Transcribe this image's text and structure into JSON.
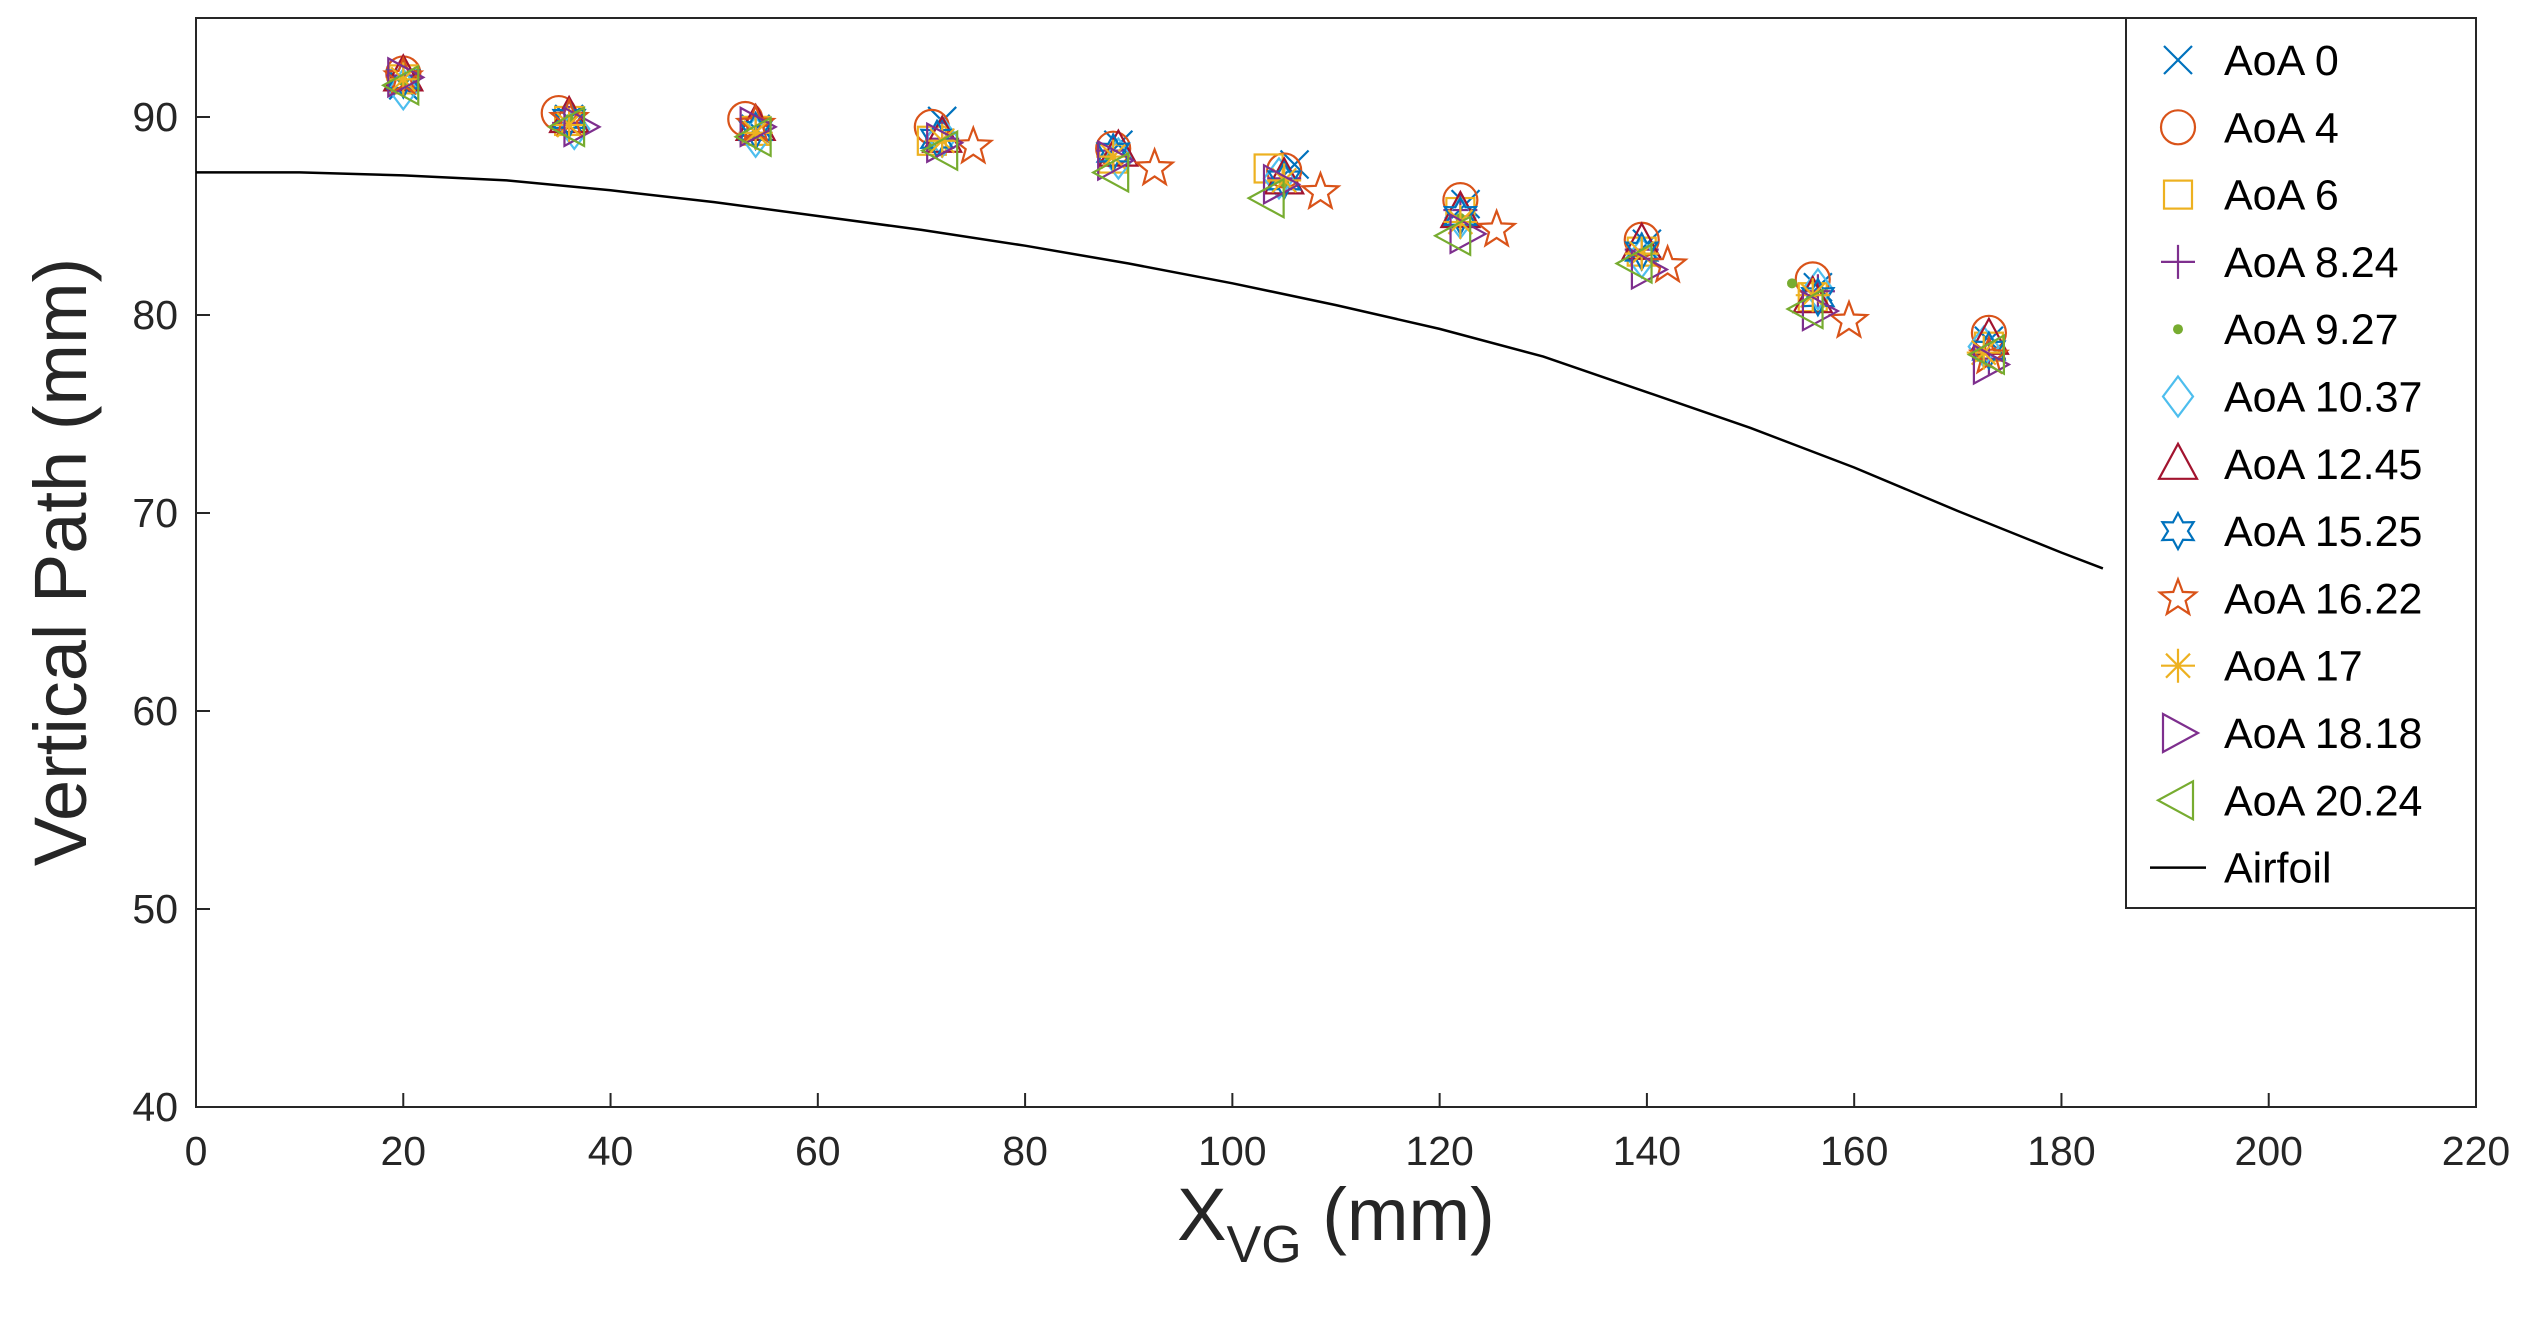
{
  "chart_data": {
    "type": "scatter",
    "title": "",
    "xlabel": "X",
    "xlabel_sub": "VG",
    "xlabel_unit": " (mm)",
    "ylabel": "Vertical Path (mm)",
    "xlim": [
      0,
      220
    ],
    "ylim": [
      40,
      95
    ],
    "xticks": [
      "0",
      "20",
      "40",
      "60",
      "80",
      "100",
      "120",
      "140",
      "160",
      "180",
      "200",
      "220"
    ],
    "yticks": [
      "40",
      "50",
      "60",
      "70",
      "80",
      "90"
    ],
    "grid": false,
    "legend_position": "top-right",
    "series": [
      {
        "name": "AoA 0",
        "marker": "x",
        "color": "#0072BD",
        "x": [
          20,
          36,
          54,
          72,
          89,
          106,
          122.5,
          140,
          156.5,
          173
        ],
        "y": [
          91.6,
          89.9,
          89.4,
          89.8,
          88.6,
          87.6,
          85.6,
          83.6,
          81.4,
          78.7
        ]
      },
      {
        "name": "AoA 4",
        "marker": "circle",
        "color": "#D95319",
        "x": [
          20,
          35,
          53,
          71,
          88.5,
          105,
          122,
          139.5,
          156,
          173
        ],
        "y": [
          92.2,
          90.2,
          89.9,
          89.5,
          88.4,
          87.3,
          85.8,
          83.8,
          81.8,
          79.1
        ]
      },
      {
        "name": "AoA 6",
        "marker": "square",
        "color": "#EDB120",
        "x": [
          20,
          36,
          54,
          71,
          88.5,
          103.5,
          122,
          139.5,
          156,
          173
        ],
        "y": [
          91.9,
          89.8,
          89.3,
          88.8,
          87.9,
          87.4,
          85.2,
          83.2,
          80.9,
          78.4
        ]
      },
      {
        "name": "AoA 8.24",
        "marker": "plus",
        "color": "#7E2F8E",
        "x": [
          20,
          36,
          54,
          72,
          88.5,
          105,
          122,
          139.5,
          156.5,
          173
        ],
        "y": [
          92.1,
          89.7,
          89.2,
          88.9,
          88.3,
          86.9,
          85.3,
          83.3,
          81.2,
          77.8
        ]
      },
      {
        "name": "AoA 9.27",
        "marker": "point",
        "color": "#77AC30",
        "x": [
          20,
          36,
          54,
          71,
          88,
          105,
          122,
          139.5,
          154,
          172
        ],
        "y": [
          91.8,
          89.9,
          89.1,
          88.5,
          88.0,
          86.7,
          84.9,
          83.0,
          81.6,
          77.9
        ]
      },
      {
        "name": "AoA 10.37",
        "marker": "diamond",
        "color": "#4DBEEE",
        "x": [
          20,
          36.5,
          54,
          72,
          89,
          104.5,
          122,
          139.5,
          156.5,
          172.5
        ],
        "y": [
          91.4,
          89.4,
          89.0,
          89.0,
          87.9,
          86.9,
          84.9,
          82.9,
          81.3,
          78.4
        ]
      },
      {
        "name": "AoA 12.45",
        "marker": "triangle",
        "color": "#A2142F",
        "x": [
          20,
          36,
          54,
          72,
          89,
          105,
          122,
          139.5,
          156,
          173
        ],
        "y": [
          92.1,
          90.0,
          89.6,
          89.0,
          88.3,
          86.9,
          85.2,
          83.6,
          80.9,
          78.8
        ]
      },
      {
        "name": "AoA 15.25",
        "marker": "hexagram",
        "color": "#0072BD",
        "x": [
          20,
          36,
          54,
          71.5,
          88.5,
          105,
          122,
          139.5,
          156.5,
          173
        ],
        "y": [
          91.9,
          89.9,
          89.3,
          88.9,
          88.2,
          86.8,
          85.0,
          83.2,
          80.9,
          78.2
        ]
      },
      {
        "name": "AoA 16.22",
        "marker": "pentagram",
        "color": "#D95319",
        "x": [
          20,
          36,
          54,
          75,
          92.5,
          108.5,
          125.5,
          142,
          159.5,
          173
        ],
        "y": [
          92.0,
          89.9,
          89.6,
          88.5,
          87.4,
          86.2,
          84.3,
          82.5,
          79.7,
          77.9
        ]
      },
      {
        "name": "AoA 17",
        "marker": "asterisk",
        "color": "#EDB120",
        "x": [
          20,
          36,
          54,
          72,
          88.5,
          105,
          122,
          139.5,
          156,
          172.5
        ],
        "y": [
          91.9,
          89.6,
          89.2,
          88.8,
          88.0,
          86.8,
          84.7,
          83.1,
          81.0,
          78.1
        ]
      },
      {
        "name": "AoA 18.18",
        "marker": "triangle-right",
        "color": "#7E2F8E",
        "x": [
          20,
          37,
          54,
          72,
          88.5,
          104.5,
          122.5,
          140,
          156.5,
          173
        ],
        "y": [
          92.0,
          89.5,
          89.5,
          88.7,
          87.8,
          86.6,
          84.1,
          82.3,
          80.2,
          77.5
        ]
      },
      {
        "name": "AoA 20.24",
        "marker": "triangle-left",
        "color": "#77AC30",
        "x": [
          20,
          36,
          54,
          72,
          88.5,
          103.5,
          121.5,
          139,
          155.5,
          173
        ],
        "y": [
          91.6,
          89.5,
          89.0,
          88.3,
          87.2,
          85.9,
          84.0,
          82.6,
          80.3,
          78.0
        ]
      },
      {
        "name": "Airfoil",
        "marker": "line",
        "color": "#000000",
        "x": [
          0,
          5,
          10,
          20,
          30,
          40,
          50,
          60,
          70,
          80,
          90,
          100,
          110,
          120,
          130,
          140,
          150,
          160,
          170,
          180,
          184
        ],
        "y": [
          87.2,
          87.2,
          87.2,
          87.05,
          86.8,
          86.3,
          85.7,
          85.0,
          84.3,
          83.5,
          82.6,
          81.6,
          80.5,
          79.3,
          77.9,
          76.1,
          74.3,
          72.3,
          70.1,
          68.0,
          67.2
        ]
      }
    ]
  }
}
